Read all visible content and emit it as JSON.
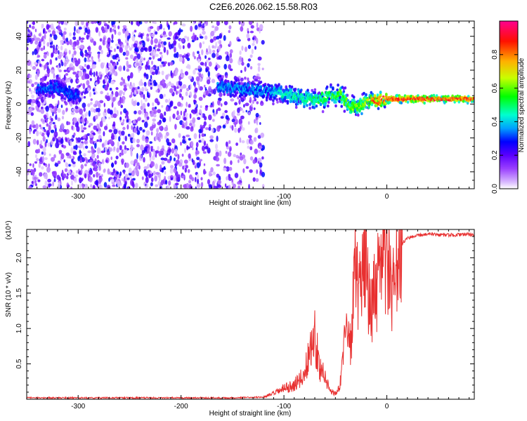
{
  "title": "C2E6.2026.062.15.58.R03",
  "chart_data": [
    {
      "type": "heatmap",
      "xlabel": "Height of straight line (km)",
      "ylabel": "Frequency (Hz)",
      "xlim": [
        -350,
        85
      ],
      "ylim": [
        -50,
        49
      ],
      "xticks": [
        -300,
        -200,
        -100,
        0
      ],
      "yticks": [
        -40,
        -20,
        0,
        20,
        40
      ],
      "colorbar": {
        "label": "Normalized spectral amplitude",
        "range": [
          0,
          1
        ],
        "ticks": [
          0.0,
          0.2,
          0.4,
          0.6,
          0.8
        ],
        "tick_labels": [
          "0.0",
          "0.2",
          "0.4",
          "0.6",
          "0.8"
        ],
        "colors": [
          "#ffffff",
          "#b060ff",
          "#6a00ff",
          "#0000ff",
          "#00c8ff",
          "#00ff60",
          "#c8ff00",
          "#ffc000",
          "#ff0000",
          "#ff0090"
        ]
      },
      "ridge": {
        "x": [
          -350,
          -320,
          -305,
          -160,
          -140,
          -110,
          -90,
          -70,
          -55,
          -45,
          -35,
          -25,
          -15,
          0,
          20,
          50,
          85
        ],
        "y": [
          8,
          10,
          5,
          10,
          9,
          7,
          4,
          2,
          5,
          6,
          -3,
          0,
          2,
          3,
          3,
          3,
          3
        ]
      }
    },
    {
      "type": "line",
      "xlabel": "Height of straight line (km)",
      "ylabel": "SNR (10 * v/v)",
      "multiplier": "(x10⁴)",
      "xlim": [
        -350,
        85
      ],
      "ylim": [
        0,
        2.4
      ],
      "xticks": [
        -300,
        -200,
        -100,
        0
      ],
      "yticks": [
        0.5,
        1.0,
        1.5,
        2.0
      ],
      "ytick_labels": [
        "0.5",
        "1.0",
        "1.5",
        "2.0"
      ],
      "series": [
        {
          "name": "SNR",
          "color": "#e83030",
          "x": [
            -350,
            -150,
            -120,
            -110,
            -100,
            -90,
            -80,
            -75,
            -70,
            -65,
            -60,
            -55,
            -50,
            -45,
            -40,
            -35,
            -30,
            -25,
            -20,
            -15,
            -10,
            -5,
            0,
            5,
            10,
            15,
            20,
            30,
            40,
            60,
            85
          ],
          "y": [
            0.02,
            0.02,
            0.03,
            0.08,
            0.15,
            0.2,
            0.35,
            0.7,
            0.9,
            0.45,
            0.3,
            0.12,
            0.08,
            0.25,
            0.9,
            0.8,
            1.9,
            1.5,
            2.0,
            1.2,
            1.6,
            1.75,
            2.1,
            1.35,
            1.9,
            2.2,
            2.28,
            2.32,
            2.33,
            2.32,
            2.33
          ]
        }
      ]
    }
  ]
}
